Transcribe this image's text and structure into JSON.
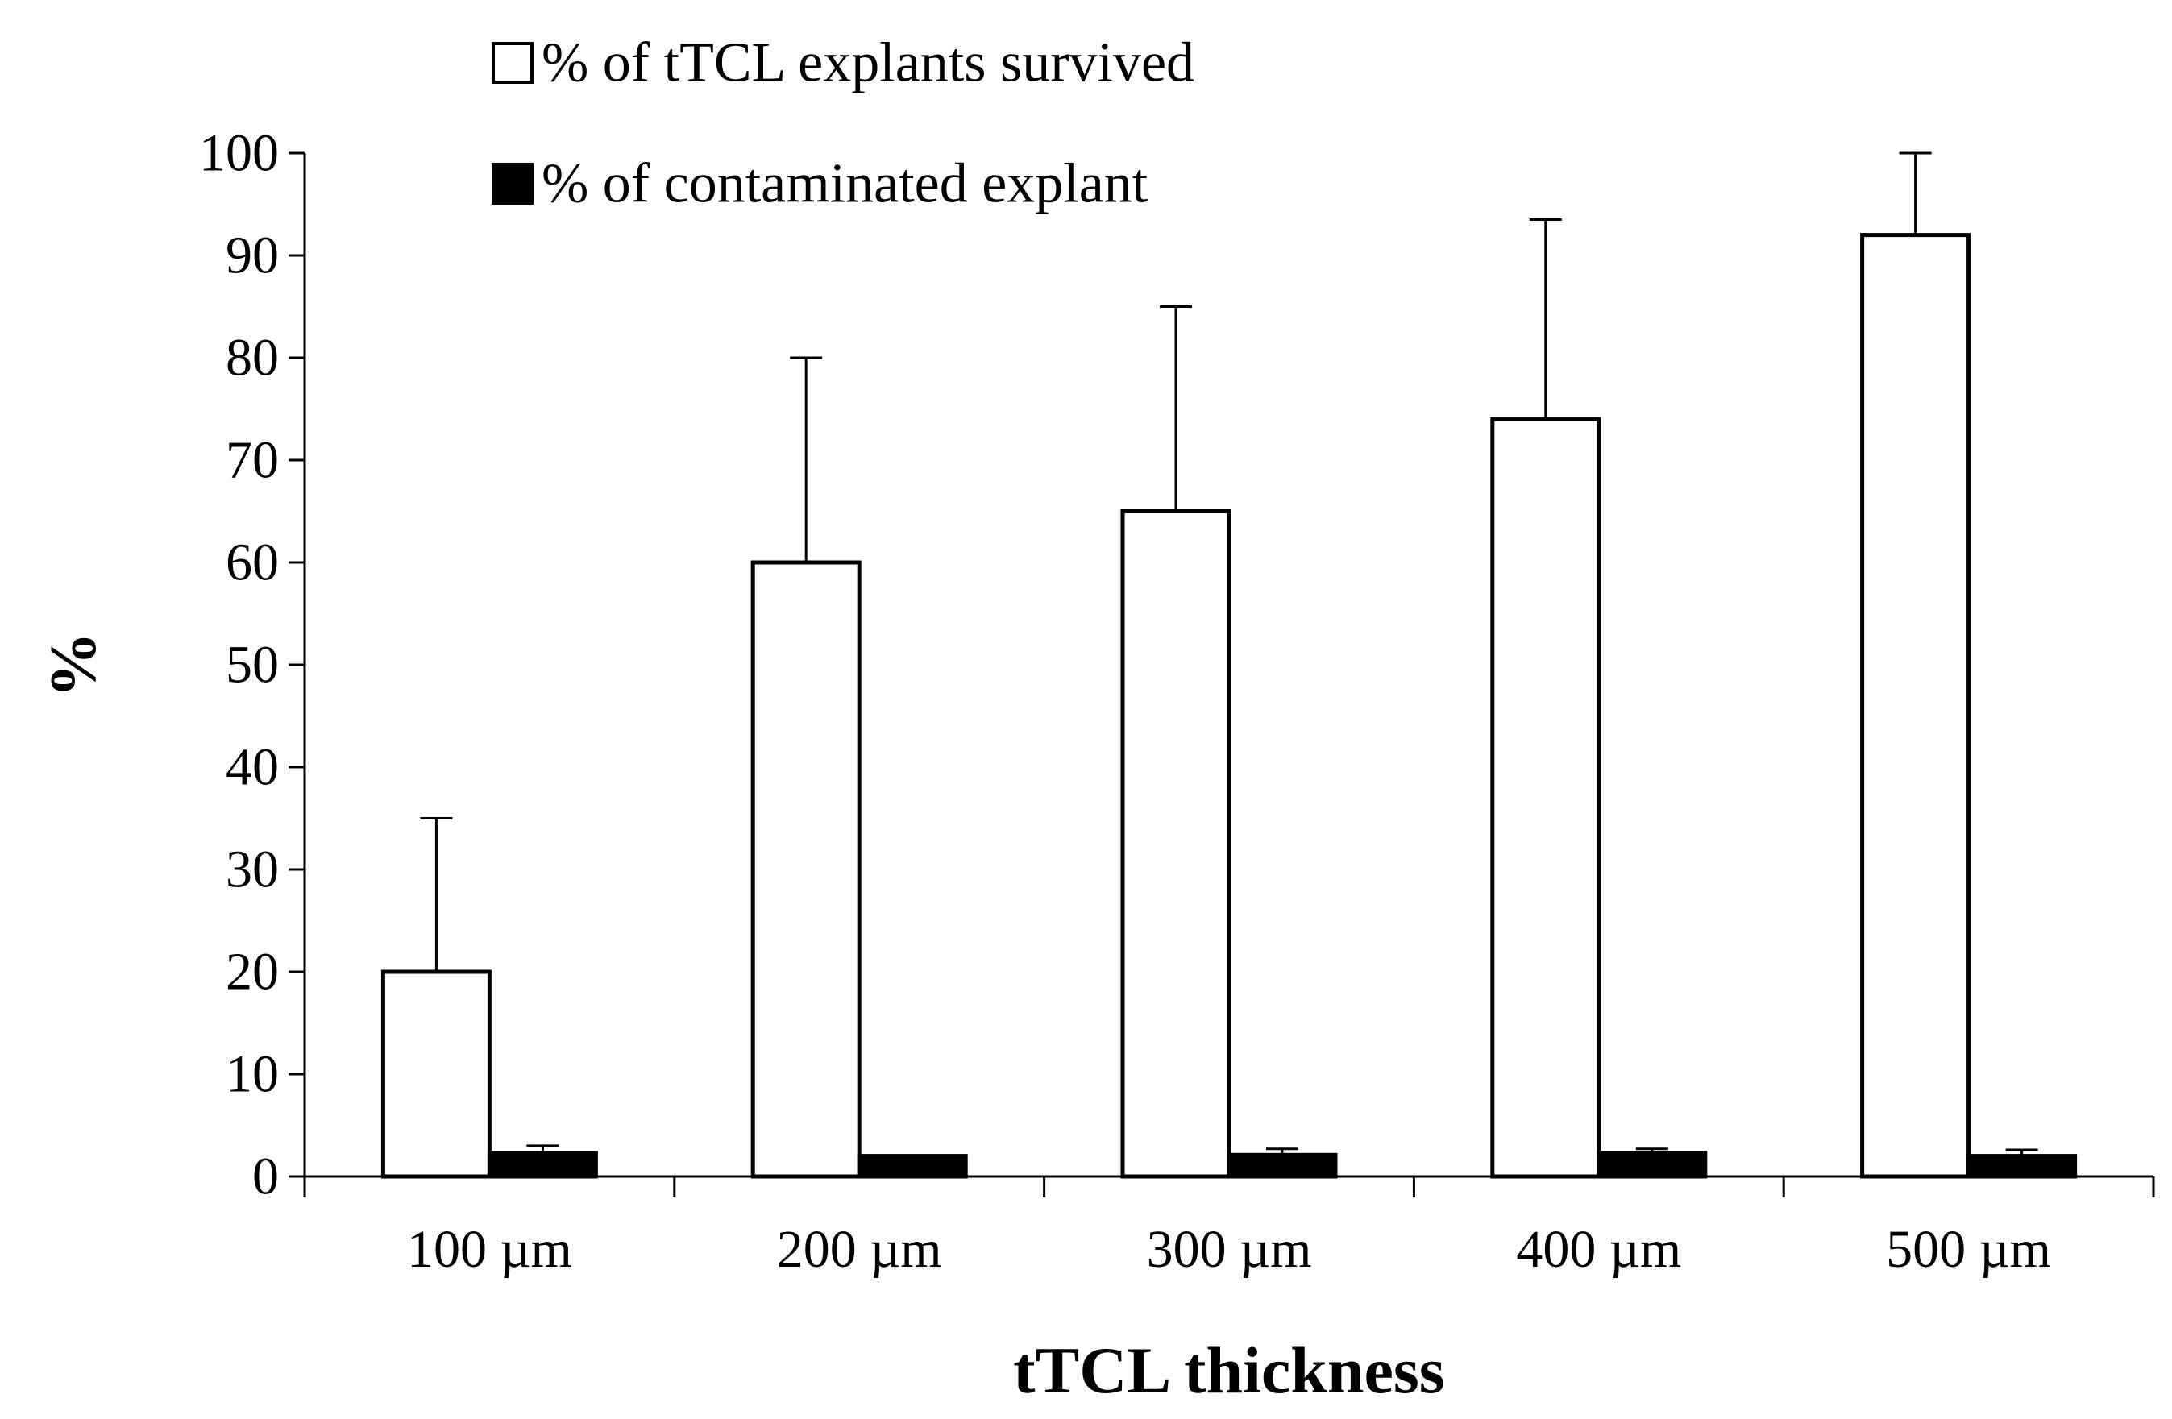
{
  "chart_data": {
    "type": "bar",
    "title": "",
    "xlabel": "tTCL thickness",
    "ylabel": "%",
    "ylim": [
      0,
      100
    ],
    "yticks": [
      0,
      10,
      20,
      30,
      40,
      50,
      60,
      70,
      80,
      90,
      100
    ],
    "ytick_labels": [
      "0",
      "10",
      "20",
      "30",
      "40",
      "50",
      "60",
      "70",
      "80",
      "90",
      "100"
    ],
    "categories": [
      "100 µm",
      "200 µm",
      "300 µm",
      "400 µm",
      "500 µm"
    ],
    "grid": false,
    "legend_position": "top-left",
    "series": [
      {
        "name": "% of tTCL explants survived",
        "fill": "#ffffff",
        "values": [
          20,
          60,
          65,
          74,
          92
        ],
        "error_upper": [
          15,
          20,
          20,
          19.5,
          8
        ]
      },
      {
        "name": "% of contaminated explant",
        "fill": "#000000",
        "values": [
          2.3,
          2,
          2.1,
          2.3,
          2
        ],
        "error_upper": [
          0.7,
          0,
          0.6,
          0.4,
          0.6
        ]
      }
    ]
  }
}
